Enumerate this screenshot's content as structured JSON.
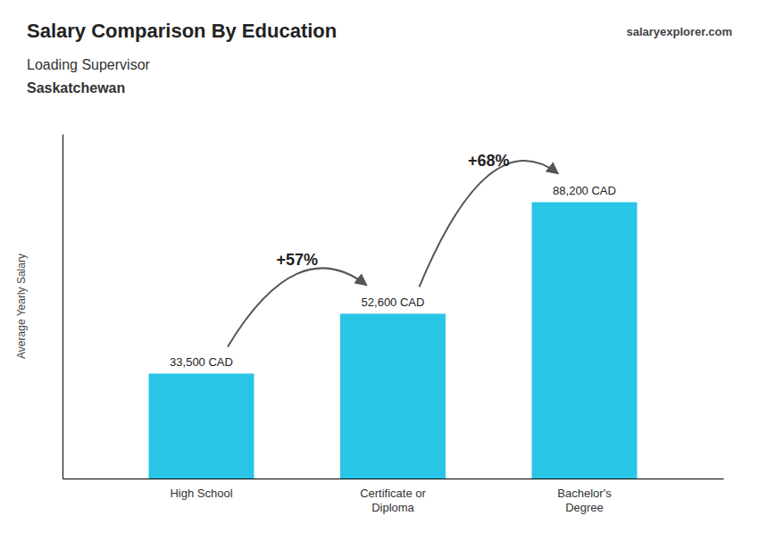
{
  "chart_data": {
    "type": "bar",
    "title": "Salary Comparison By Education",
    "subtitle": [
      "Loading Supervisor",
      "Saskatchewan"
    ],
    "watermark": [
      "salary",
      "explorer",
      ".com"
    ],
    "ylabel": "Average Yearly Salary",
    "categories": [
      "High School",
      "Certificate or\nDiploma",
      "Bachelor's\nDegree"
    ],
    "values": [
      33500,
      52600,
      88200
    ],
    "value_labels": [
      "33,500 CAD",
      "52,600 CAD",
      "88,200 CAD"
    ],
    "data_labels": true,
    "annotations": [
      "+57%",
      "+68%"
    ],
    "color": "#29c5e6",
    "ylim": [
      0,
      110000
    ],
    "tick_labels": "x",
    "grid": false
  }
}
